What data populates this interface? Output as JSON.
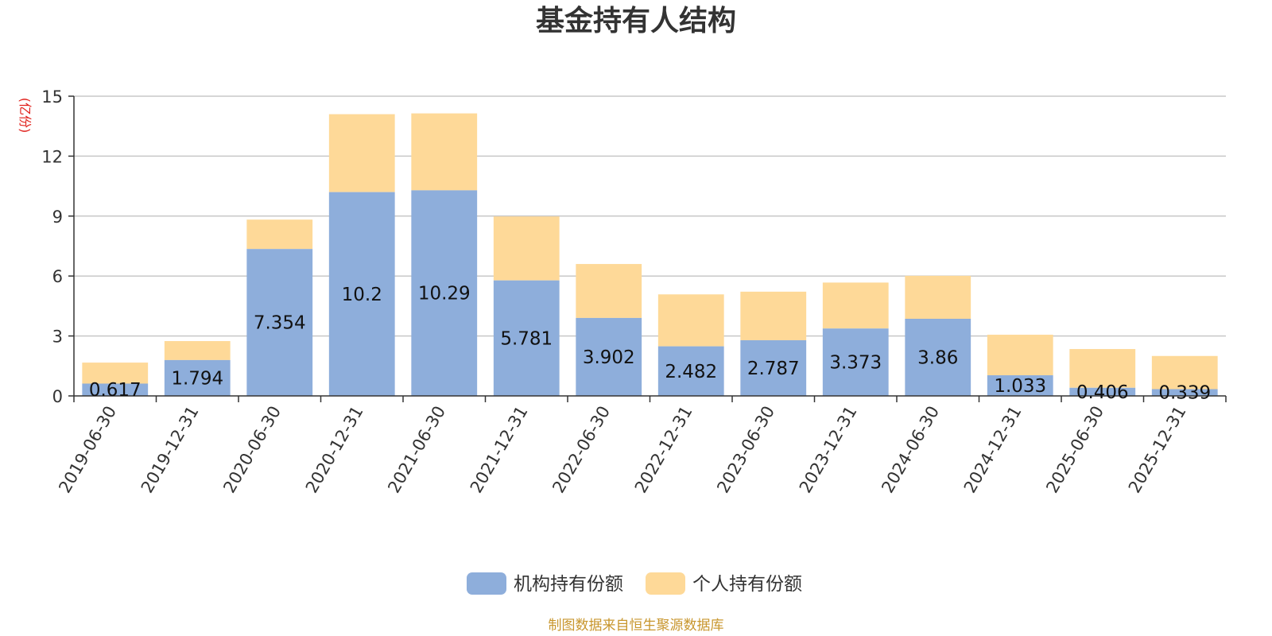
{
  "chart_data": {
    "type": "bar",
    "stacked": true,
    "title": "基金持有人结构",
    "ylabel": "(亿份)",
    "ylim": [
      0,
      15
    ],
    "yticks": [
      0,
      3,
      6,
      9,
      12,
      15
    ],
    "grid": true,
    "legend_position": "bottom-center",
    "categories": [
      "2019-06-30",
      "2019-12-31",
      "2020-06-30",
      "2020-12-31",
      "2021-06-30",
      "2021-12-31",
      "2022-06-30",
      "2022-12-31",
      "2023-06-30",
      "2023-12-31",
      "2024-06-30",
      "2024-12-31",
      "2025-06-30",
      "2025-12-31"
    ],
    "series": [
      {
        "name": "机构持有份额",
        "color": "#8eaedb",
        "labels": [
          "0.617",
          "1.794",
          "7.354",
          "10.2",
          "10.29",
          "5.781",
          "3.902",
          "2.482",
          "2.787",
          "3.373",
          "3.86",
          "1.033",
          "0.406",
          "0.339"
        ],
        "values": [
          0.617,
          1.794,
          7.354,
          10.2,
          10.29,
          5.781,
          3.902,
          2.482,
          2.787,
          3.373,
          3.86,
          1.033,
          0.406,
          0.339
        ]
      },
      {
        "name": "个人持有份额",
        "color": "#fed998",
        "values": [
          1.05,
          0.95,
          1.47,
          3.9,
          3.85,
          3.2,
          2.7,
          2.6,
          2.43,
          2.3,
          2.15,
          2.03,
          1.94,
          1.66
        ]
      }
    ],
    "source": "制图数据来自恒生聚源数据库"
  }
}
